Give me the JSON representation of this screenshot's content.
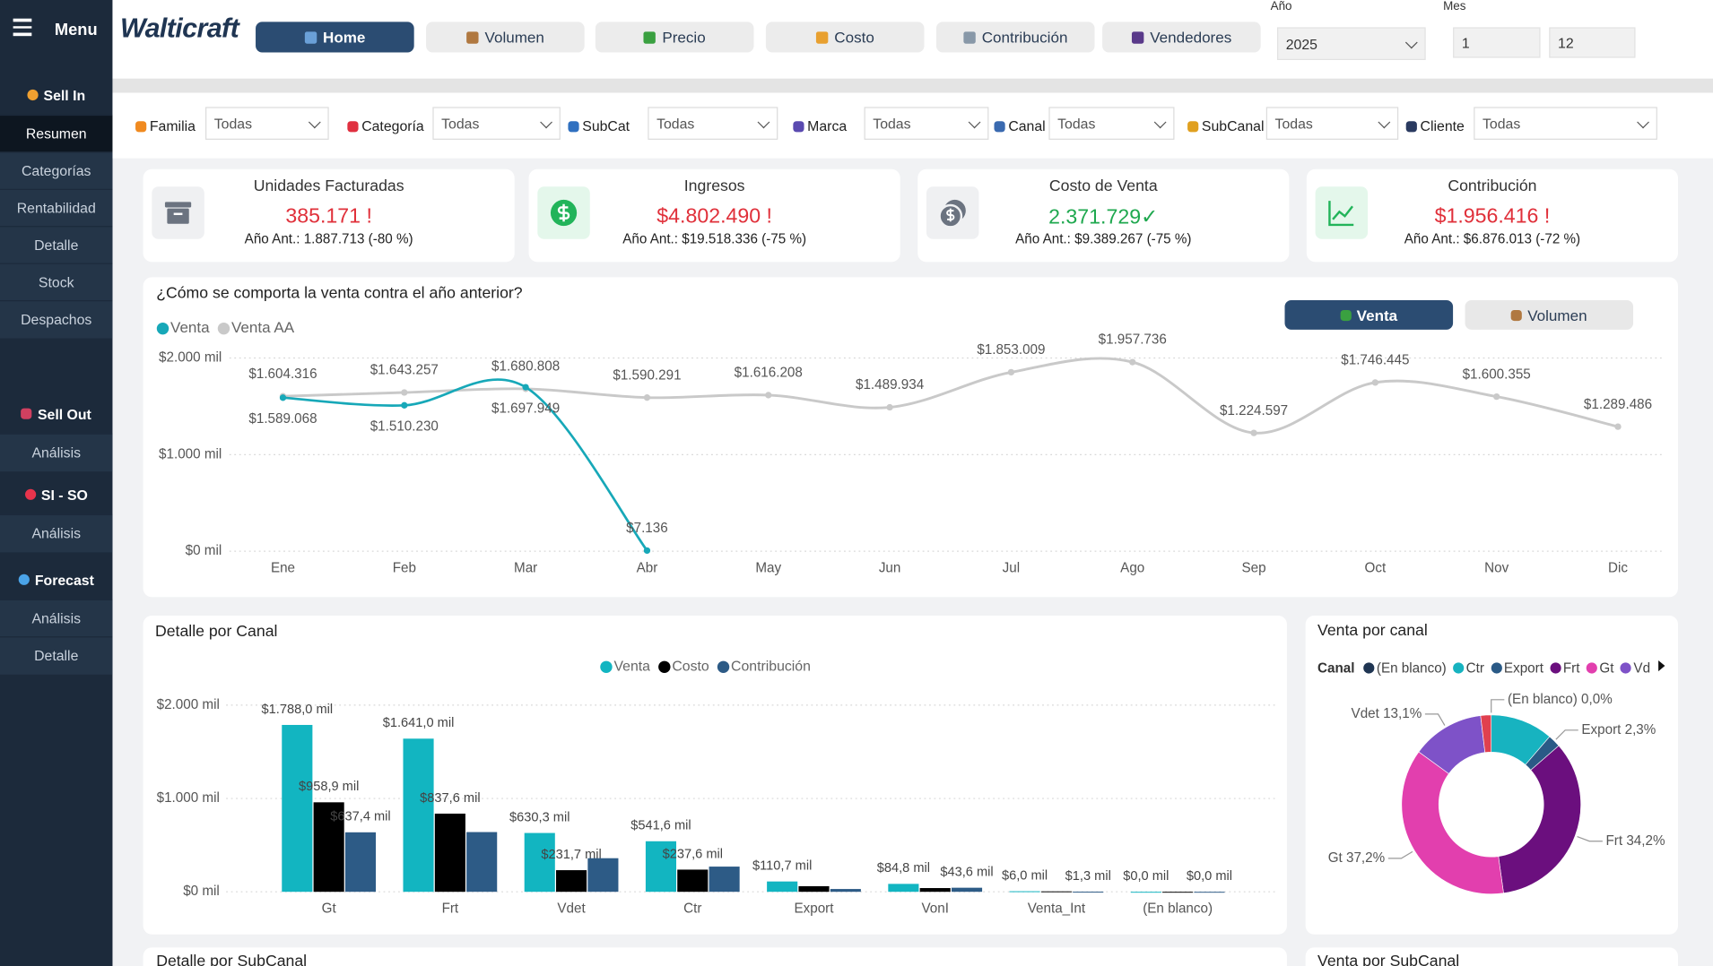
{
  "sidebar": {
    "menu": "Menu",
    "sections": [
      {
        "label": "Sell In",
        "items": [
          "Resumen",
          "Categorías",
          "Rentabilidad",
          "Detalle",
          "Stock",
          "Despachos"
        ]
      },
      {
        "label": "Sell Out",
        "items": [
          "Análisis"
        ]
      },
      {
        "label": "SI - SO",
        "items": [
          "Análisis"
        ]
      },
      {
        "label": "Forecast",
        "items": [
          "Análisis",
          "Detalle"
        ]
      }
    ]
  },
  "header": {
    "logo": "Walticraft",
    "tabs": [
      "Home",
      "Volumen",
      "Precio",
      "Costo",
      "Contribución",
      "Vendedores"
    ],
    "year_label": "Año",
    "year": "2025",
    "month_label": "Mes",
    "month_from": "1",
    "month_to": "12"
  },
  "filters": [
    {
      "label": "Familia",
      "value": "Todas"
    },
    {
      "label": "Categoría",
      "value": "Todas"
    },
    {
      "label": "SubCat",
      "value": "Todas"
    },
    {
      "label": "Marca",
      "value": "Todas"
    },
    {
      "label": "Canal",
      "value": "Todas"
    },
    {
      "label": "SubCanal",
      "value": "Todas"
    },
    {
      "label": "Cliente",
      "value": "Todas"
    }
  ],
  "kpis": [
    {
      "title": "Unidades Facturadas",
      "value": "385.171 !",
      "previous": "Año Ant.: 1.887.713 (-80 %)"
    },
    {
      "title": "Ingresos",
      "value": "$4.802.490 !",
      "previous": "Año Ant.: $19.518.336 (-75 %)"
    },
    {
      "title": "Costo de Venta",
      "value": "2.371.729✓",
      "previous": "Año Ant.: $9.389.267 (-75 %)"
    },
    {
      "title": "Contribución",
      "value": "$1.956.416 !",
      "previous": "Año Ant.: $6.876.013 (-72 %)"
    }
  ],
  "chart_data": [
    {
      "type": "line",
      "title": "¿Cómo se comporta la venta contra el año anterior?",
      "buttons": [
        "Venta",
        "Volumen"
      ],
      "categories": [
        "Ene",
        "Feb",
        "Mar",
        "Abr",
        "May",
        "Jun",
        "Jul",
        "Ago",
        "Sep",
        "Oct",
        "Nov",
        "Dic"
      ],
      "series": [
        {
          "name": "Venta",
          "color": "#17a8b8",
          "values": [
            1589068,
            1510230,
            1697949,
            7136,
            null,
            null,
            null,
            null,
            null,
            null,
            null,
            null
          ],
          "value_labels": [
            "$1.589.068",
            "$1.510.230",
            "$1.697.949",
            "$7.136",
            null,
            null,
            null,
            null,
            null,
            null,
            null,
            null
          ]
        },
        {
          "name": "Venta AA",
          "color": "#c9c9c9",
          "values": [
            1604316,
            1643257,
            1680808,
            1590291,
            1616208,
            1489934,
            1853009,
            1957736,
            1224597,
            1746445,
            1600355,
            1289486
          ],
          "value_labels": [
            "$1.604.316",
            "$1.643.257",
            "$1.680.808",
            "$1.590.291",
            "$1.616.208",
            "$1.489.934",
            "$1.853.009",
            "$1.957.736",
            "$1.224.597",
            "$1.746.445",
            "$1.600.355",
            "$1.289.486"
          ]
        }
      ],
      "ylim": [
        0,
        2000000
      ],
      "yticks": [
        {
          "value": 0,
          "label": "$0 mil"
        },
        {
          "value": 1000000,
          "label": "$1.000 mil"
        },
        {
          "value": 2000000,
          "label": "$2.000 mil"
        }
      ],
      "grid": true,
      "legend": "top-left"
    },
    {
      "type": "bar",
      "title": "Detalle por Canal",
      "categories": [
        "Gt",
        "Frt",
        "Vdet",
        "Ctr",
        "Export",
        "VonI",
        "Venta_Int",
        "(En blanco)"
      ],
      "series": [
        {
          "name": "Venta",
          "color": "#12b5c1",
          "values": [
            1788000,
            1641000,
            630300,
            541600,
            110700,
            84800,
            6000,
            0
          ],
          "value_labels": [
            "$1.788,0 mil",
            "$1.641,0 mil",
            "$630,3 mil",
            "$541,6 mil",
            "$110,7 mil",
            "$84,8 mil",
            "$6,0 mil",
            "$0,0 mil"
          ]
        },
        {
          "name": "Costo",
          "color": "#000000",
          "values": [
            958900,
            837600,
            231700,
            237600,
            60000,
            40000,
            4700,
            0
          ],
          "value_labels": [
            "$958,9 mil",
            "$837,6 mil",
            "$231,7 mil",
            "$237,6 mil",
            null,
            null,
            null,
            null
          ]
        },
        {
          "name": "Contribución",
          "color": "#2d5b86",
          "values": [
            637400,
            640000,
            360000,
            270000,
            30000,
            43600,
            1300,
            0
          ],
          "value_labels": [
            "$637,4 mil",
            null,
            null,
            null,
            null,
            "$43,6 mil",
            "$1,3 mil",
            "$0,0 mil"
          ]
        }
      ],
      "ylim": [
        0,
        2000000
      ],
      "yticks": [
        {
          "value": 0,
          "label": "$0 mil"
        },
        {
          "value": 1000000,
          "label": "$1.000 mil"
        },
        {
          "value": 2000000,
          "label": "$2.000 mil"
        }
      ],
      "grid": true,
      "legend": "top"
    },
    {
      "type": "donut",
      "title": "Venta por canal",
      "legend_title": "Canal",
      "categories": [
        "(En blanco)",
        "Ctr",
        "Export",
        "Frt",
        "Gt",
        "Vdet",
        null
      ],
      "values": [
        0.0,
        11.3,
        2.3,
        34.2,
        37.2,
        13.1,
        1.9
      ],
      "colors": [
        "#1f3552",
        "#17b3c0",
        "#2a5a86",
        "#6b0f7e",
        "#e23fae",
        "#7e52c8",
        "#e0404f"
      ],
      "value_labels": [
        "(En blanco) 0,0%",
        null,
        "Export 2,3%",
        "Frt 34,2%",
        "Gt 37,2%",
        "Vdet 13,1%",
        null
      ]
    }
  ],
  "sections": [
    "Detalle por SubCanal",
    "Venta por SubCanal"
  ]
}
